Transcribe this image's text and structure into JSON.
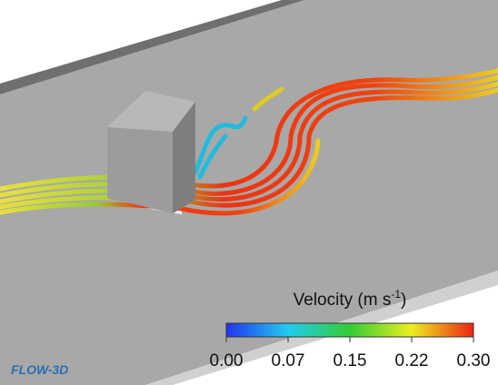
{
  "colorbar": {
    "title": "Velocity (m s",
    "title_superscript": "-1",
    "title_end": ")",
    "ticks": [
      "0.00",
      "0.07",
      "0.15",
      "0.22",
      "0.30"
    ]
  },
  "logo": "FLOW-3D"
}
